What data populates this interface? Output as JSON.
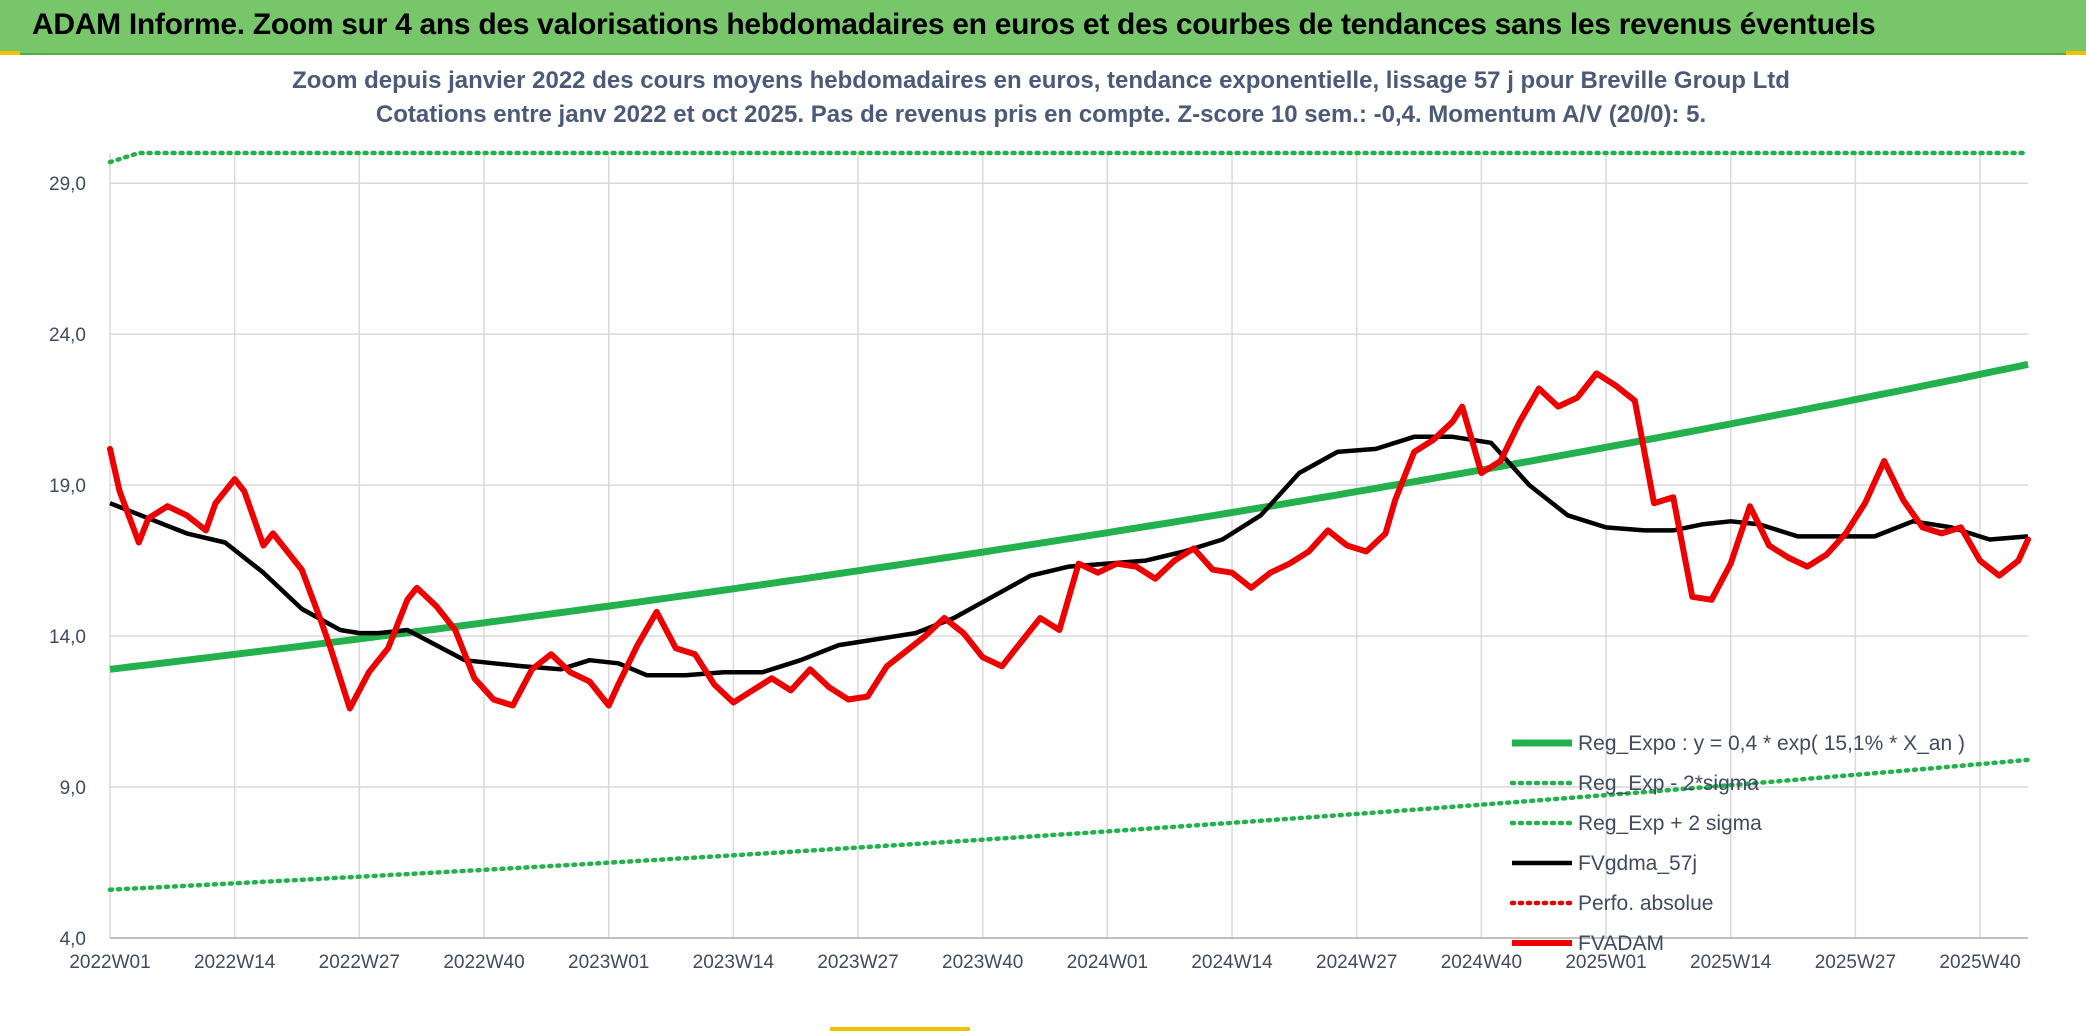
{
  "header": {
    "title": "ADAM Informe. Zoom sur 4 ans des valorisations hebdomadaires en euros et des courbes de tendances sans les revenus éventuels"
  },
  "chart_data": {
    "type": "line",
    "title_line1": "Zoom depuis janvier 2022 des cours moyens hebdomadaires en euros, tendance exponentielle, lissage 57 j pour Breville Group Ltd",
    "title_line2": "Cotations entre janv 2022 et oct 2025. Pas de revenus pris en compte. Z-score 10 sem.: -0,4. Momentum A/V (20/0): 5.",
    "ylim": [
      4,
      30
    ],
    "y_ticks": [
      "4,0",
      "9,0",
      "14,0",
      "19,0",
      "24,0",
      "29,0"
    ],
    "y_tick_values": [
      4,
      9,
      14,
      19,
      24,
      29
    ],
    "x_ticks": [
      "2022W01",
      "2022W14",
      "2022W27",
      "2022W40",
      "2023W01",
      "2023W14",
      "2023W27",
      "2023W40",
      "2024W01",
      "2024W14",
      "2024W27",
      "2024W40",
      "2025W01",
      "2025W14",
      "2025W27",
      "2025W40"
    ],
    "x_tick_weeks": [
      0,
      13,
      26,
      39,
      52,
      65,
      78,
      91,
      104,
      117,
      130,
      143,
      156,
      169,
      182,
      195
    ],
    "x_max_week": 200,
    "grid": true,
    "legend_position": "bottom-right",
    "colors": {
      "reg_expo": "#22b14c",
      "reg_band": "#22b14c",
      "fvgdma": "#000000",
      "perfo": "#e00000",
      "fvadam": "#ee0000"
    },
    "legend": [
      {
        "label": "Reg_Expo : y = 0,4 * exp( 15,1% *  X_an )",
        "style": "solid-green"
      },
      {
        "label": "Reg_Exp - 2*sigma",
        "style": "dotted-green"
      },
      {
        "label": "Reg_Exp + 2 sigma",
        "style": "dotted-green"
      },
      {
        "label": "FVgdma_57j",
        "style": "solid-black"
      },
      {
        "label": "Perfo. absolue",
        "style": "dotted-red"
      },
      {
        "label": "FVADAM",
        "style": "solid-red"
      }
    ],
    "series": [
      {
        "name": "Reg_Expo : y = 0,4 * exp( 15,1% *  X_an )",
        "type": "exp",
        "x": [
          0,
          200
        ],
        "y": [
          12.9,
          23.0
        ]
      },
      {
        "name": "Reg_Exp - 2*sigma",
        "type": "exp",
        "x": [
          0,
          200
        ],
        "y": [
          5.6,
          9.9
        ]
      },
      {
        "name": "Reg_Exp + 2 sigma",
        "type": "flat",
        "x": [
          0,
          3,
          200
        ],
        "y": [
          29.7,
          30.0,
          30.0
        ]
      },
      {
        "name": "FVgdma_57j",
        "x": [
          0,
          4,
          8,
          12,
          16,
          20,
          24,
          26,
          28,
          31,
          34,
          37,
          40,
          43,
          47,
          50,
          53,
          56,
          60,
          64,
          68,
          72,
          76,
          80,
          84,
          88,
          92,
          96,
          100,
          104,
          108,
          112,
          116,
          120,
          124,
          128,
          132,
          136,
          140,
          144,
          148,
          152,
          156,
          160,
          163,
          166,
          169,
          172,
          176,
          180,
          184,
          188,
          192,
          196,
          200
        ],
        "y": [
          18.4,
          17.9,
          17.4,
          17.1,
          16.1,
          14.9,
          14.2,
          14.1,
          14.1,
          14.2,
          13.7,
          13.2,
          13.1,
          13.0,
          12.9,
          13.2,
          13.1,
          12.7,
          12.7,
          12.8,
          12.8,
          13.2,
          13.7,
          13.9,
          14.1,
          14.6,
          15.3,
          16.0,
          16.3,
          16.4,
          16.5,
          16.8,
          17.2,
          18.0,
          19.4,
          20.1,
          20.2,
          20.6,
          20.6,
          20.4,
          19.0,
          18.0,
          17.6,
          17.5,
          17.5,
          17.7,
          17.8,
          17.7,
          17.3,
          17.3,
          17.3,
          17.8,
          17.6,
          17.2,
          17.3
        ]
      },
      {
        "name": "FVADAM",
        "x": [
          0,
          1,
          3,
          4,
          6,
          8,
          10,
          11,
          13,
          14,
          16,
          17,
          20,
          22,
          23,
          25,
          27,
          29,
          31,
          32,
          34,
          36,
          38,
          40,
          42,
          44,
          46,
          48,
          50,
          52,
          53,
          55,
          57,
          59,
          61,
          63,
          65,
          67,
          69,
          71,
          73,
          75,
          77,
          79,
          81,
          83,
          85,
          87,
          89,
          91,
          93,
          95,
          97,
          99,
          101,
          103,
          105,
          107,
          109,
          111,
          113,
          115,
          117,
          119,
          121,
          123,
          125,
          127,
          129,
          131,
          133,
          134,
          136,
          138,
          140,
          141,
          143,
          145,
          147,
          149,
          151,
          153,
          155,
          157,
          159,
          161,
          163,
          165,
          167,
          169,
          171,
          173,
          175,
          177,
          179,
          181,
          183,
          185,
          187,
          189,
          191,
          193,
          195,
          197,
          199,
          200
        ],
        "y": [
          20.2,
          18.8,
          17.1,
          17.9,
          18.3,
          18.0,
          17.5,
          18.4,
          19.2,
          18.8,
          17.0,
          17.4,
          16.2,
          14.5,
          13.6,
          11.6,
          12.8,
          13.6,
          15.2,
          15.6,
          15.0,
          14.2,
          12.6,
          11.9,
          11.7,
          12.9,
          13.4,
          12.8,
          12.5,
          11.7,
          12.4,
          13.7,
          14.8,
          13.6,
          13.4,
          12.4,
          11.8,
          12.2,
          12.6,
          12.2,
          12.9,
          12.3,
          11.9,
          12.0,
          13.0,
          13.5,
          14.0,
          14.6,
          14.1,
          13.3,
          13.0,
          13.8,
          14.6,
          14.2,
          16.4,
          16.1,
          16.4,
          16.3,
          15.9,
          16.5,
          16.9,
          16.2,
          16.1,
          15.6,
          16.1,
          16.4,
          16.8,
          17.5,
          17.0,
          16.8,
          17.4,
          18.5,
          20.1,
          20.5,
          21.1,
          21.6,
          19.4,
          19.8,
          21.1,
          22.2,
          21.6,
          21.9,
          22.7,
          22.3,
          21.8,
          18.4,
          18.6,
          15.3,
          15.2,
          16.4,
          18.3,
          17.0,
          16.6,
          16.3,
          16.7,
          17.4,
          18.4,
          19.8,
          18.5,
          17.6,
          17.4,
          17.6,
          16.5,
          16.0,
          16.5,
          17.2
        ]
      }
    ]
  }
}
